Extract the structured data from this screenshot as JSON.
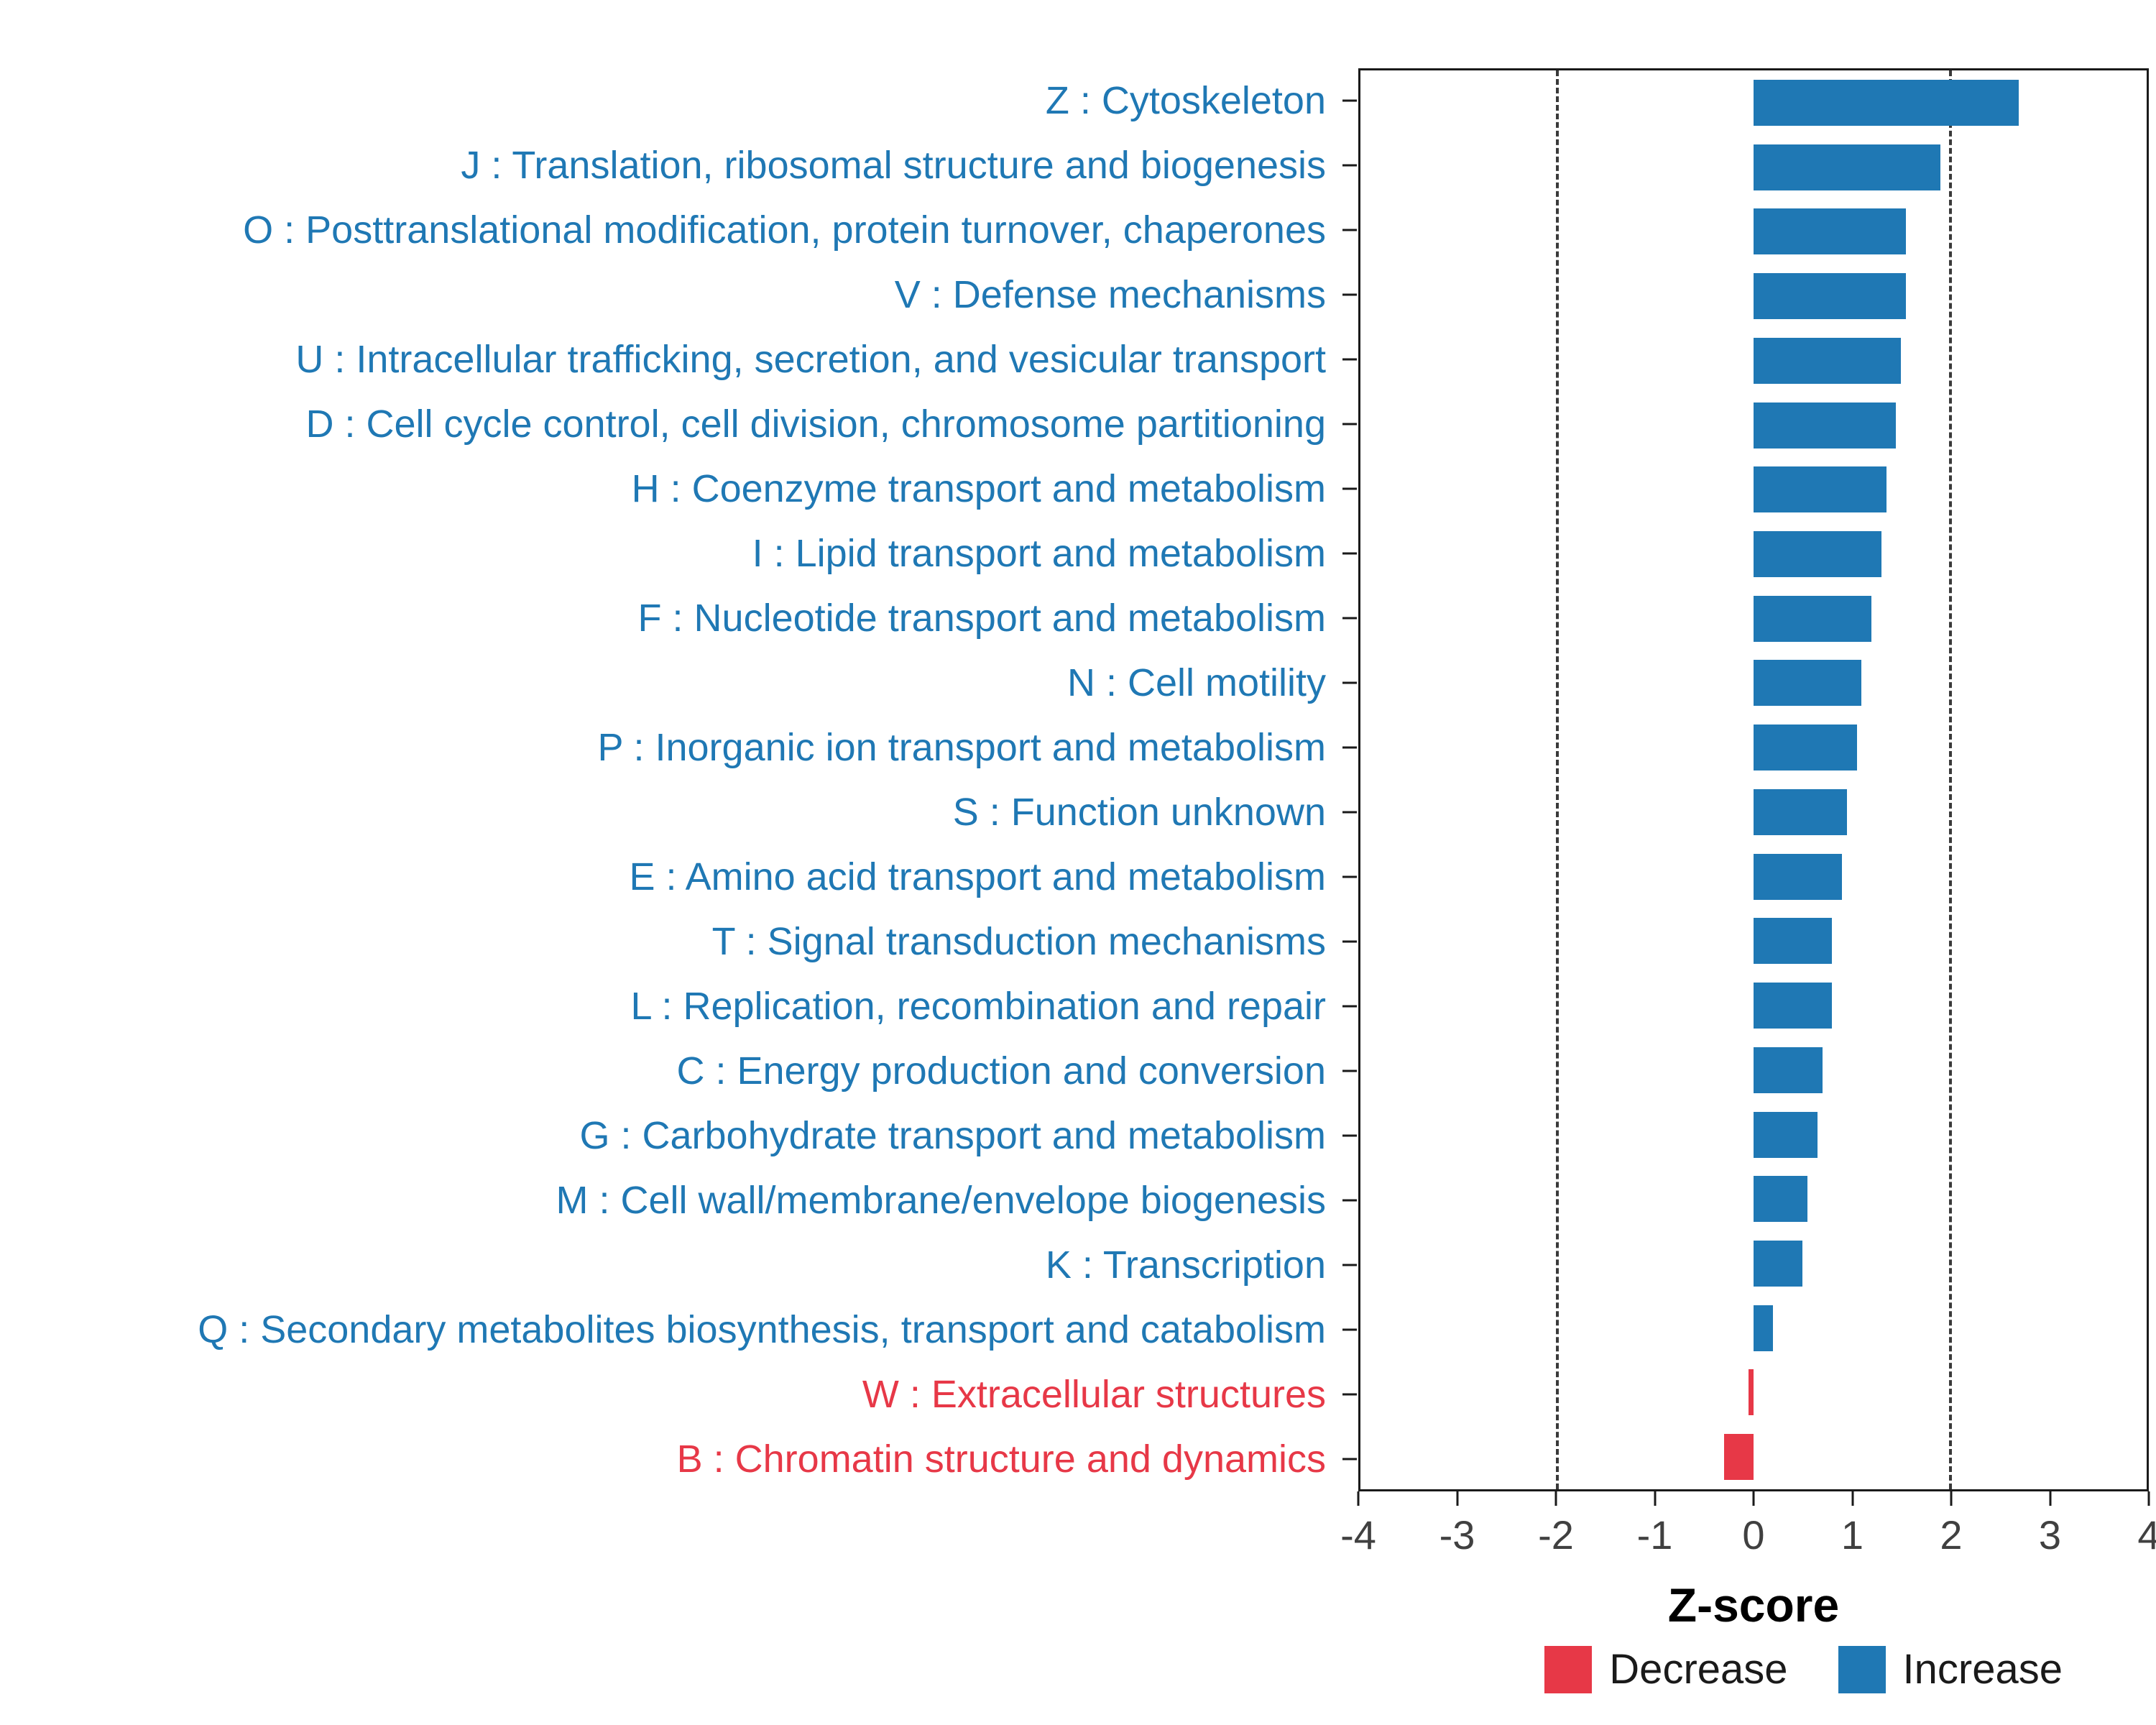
{
  "chart_data": {
    "type": "bar",
    "orientation": "horizontal",
    "title": "",
    "xlabel": "Z-score",
    "xlim": [
      -4,
      4
    ],
    "x_ticks": [
      -4,
      -3,
      -2,
      -1,
      0,
      1,
      2,
      3,
      4
    ],
    "reference_lines": [
      -2,
      2
    ],
    "grid": false,
    "legend_position": "bottom-right",
    "legend": [
      {
        "label": "Decrease",
        "color": "#E73847"
      },
      {
        "label": "Increase",
        "color": "#1F78B4"
      }
    ],
    "categories": [
      {
        "label": "Z : Cytoskeleton",
        "value": 2.7,
        "direction": "Increase"
      },
      {
        "label": "J : Translation, ribosomal structure and biogenesis",
        "value": 1.9,
        "direction": "Increase"
      },
      {
        "label": "O : Posttranslational modification, protein turnover, chaperones",
        "value": 1.55,
        "direction": "Increase"
      },
      {
        "label": "V : Defense mechanisms",
        "value": 1.55,
        "direction": "Increase"
      },
      {
        "label": "U : Intracellular trafficking, secretion, and vesicular transport",
        "value": 1.5,
        "direction": "Increase"
      },
      {
        "label": "D : Cell cycle control, cell division, chromosome partitioning",
        "value": 1.45,
        "direction": "Increase"
      },
      {
        "label": "H : Coenzyme transport and metabolism",
        "value": 1.35,
        "direction": "Increase"
      },
      {
        "label": "I : Lipid transport and metabolism",
        "value": 1.3,
        "direction": "Increase"
      },
      {
        "label": "F : Nucleotide transport and metabolism",
        "value": 1.2,
        "direction": "Increase"
      },
      {
        "label": "N : Cell motility",
        "value": 1.1,
        "direction": "Increase"
      },
      {
        "label": "P : Inorganic ion transport and metabolism",
        "value": 1.05,
        "direction": "Increase"
      },
      {
        "label": "S : Function unknown",
        "value": 0.95,
        "direction": "Increase"
      },
      {
        "label": "E : Amino acid transport and metabolism",
        "value": 0.9,
        "direction": "Increase"
      },
      {
        "label": "T : Signal transduction mechanisms",
        "value": 0.8,
        "direction": "Increase"
      },
      {
        "label": "L : Replication, recombination and repair",
        "value": 0.8,
        "direction": "Increase"
      },
      {
        "label": "C : Energy production and conversion",
        "value": 0.7,
        "direction": "Increase"
      },
      {
        "label": "G : Carbohydrate transport and metabolism",
        "value": 0.65,
        "direction": "Increase"
      },
      {
        "label": "M : Cell wall/membrane/envelope biogenesis",
        "value": 0.55,
        "direction": "Increase"
      },
      {
        "label": "K : Transcription",
        "value": 0.5,
        "direction": "Increase"
      },
      {
        "label": "Q : Secondary metabolites biosynthesis, transport and catabolism",
        "value": 0.2,
        "direction": "Increase"
      },
      {
        "label": "W : Extracellular structures",
        "value": -0.05,
        "direction": "Decrease"
      },
      {
        "label": "B : Chromatin structure and dynamics",
        "value": -0.3,
        "direction": "Decrease"
      }
    ]
  },
  "colors": {
    "increase": "#1F78B4",
    "decrease": "#E73847",
    "panel_border": "#1a1a1a",
    "reference_line": "#3a3a3a",
    "axis_text": "#404040",
    "axis_title": "#000000"
  }
}
